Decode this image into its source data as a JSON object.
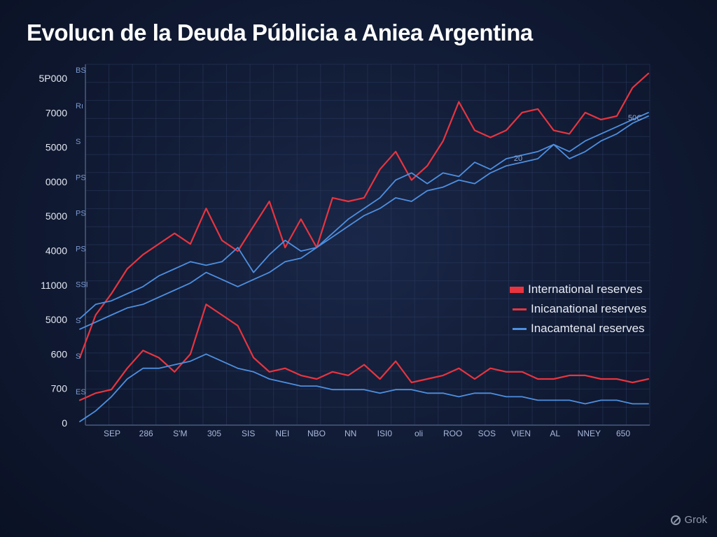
{
  "title": "Evolucn de la Deuda Públicia a Aniea Argentina",
  "watermark": "Grok",
  "colors": {
    "red": "#e8343f",
    "blue": "#4d8fe0",
    "grid": "#2b3a5e"
  },
  "chart_data": {
    "type": "line",
    "title": "Evolucn de la Deuda Públicia a Aniea Argentina",
    "xlabel": "",
    "ylabel": "",
    "grid": true,
    "legend_position": "right",
    "y_tick_labels": [
      "5P000",
      "7000",
      "5000",
      "0000",
      "5000",
      "4000",
      "11000",
      "5000",
      "600",
      "700",
      "0"
    ],
    "y_secondary_tick_labels": [
      "BS",
      "Rı",
      "S",
      "PS",
      "PS",
      "PS",
      "SSI",
      "S",
      "S",
      "ES"
    ],
    "x_tick_labels": [
      "SEP",
      "286",
      "S'M",
      "305",
      "SIS",
      "NEI",
      "NBO",
      "NN",
      "ISI0",
      "oli",
      "ROO",
      "SOS",
      "VIEN",
      "AL",
      "NNEY",
      "650"
    ],
    "annotations": [
      "20",
      "50C"
    ],
    "legend": [
      "International reserves",
      "Inicanational reserves",
      "Inacamtenal reserves"
    ],
    "ylim": [
      0,
      10
    ],
    "series": [
      {
        "name": "International reserves",
        "color": "#e8343f",
        "values": [
          1.9,
          3.1,
          3.7,
          4.4,
          4.8,
          5.1,
          5.4,
          5.1,
          6.1,
          5.2,
          4.9,
          5.6,
          6.3,
          5.0,
          5.8,
          5.0,
          6.4,
          6.3,
          6.4,
          7.2,
          7.7,
          6.9,
          7.3,
          8.0,
          9.1,
          8.3,
          8.1,
          8.3,
          8.8,
          8.9,
          8.3,
          8.2,
          8.8,
          8.6,
          8.7,
          9.5,
          9.9
        ]
      },
      {
        "name": "Inicanational reserves",
        "color": "#e8343f",
        "values": [
          0.7,
          0.9,
          1.0,
          1.6,
          2.1,
          1.9,
          1.5,
          2.0,
          3.4,
          3.1,
          2.8,
          1.9,
          1.5,
          1.6,
          1.4,
          1.3,
          1.5,
          1.4,
          1.7,
          1.3,
          1.8,
          1.2,
          1.3,
          1.4,
          1.6,
          1.3,
          1.6,
          1.5,
          1.5,
          1.3,
          1.3,
          1.4,
          1.4,
          1.3,
          1.3,
          1.2,
          1.3
        ]
      },
      {
        "name": "Inacamtenal reserves",
        "color": "#4d8fe0",
        "values": [
          3.0,
          3.4,
          3.5,
          3.7,
          3.9,
          4.2,
          4.4,
          4.6,
          4.5,
          4.6,
          5.0,
          4.3,
          4.8,
          5.2,
          4.9,
          5.0,
          5.4,
          5.8,
          6.1,
          6.4,
          6.9,
          7.1,
          6.8,
          7.1,
          7.0,
          7.4,
          7.2,
          7.5,
          7.6,
          7.7,
          7.9,
          7.7,
          8.0,
          8.2,
          8.4,
          8.6,
          8.8
        ]
      },
      {
        "name": "",
        "color": "#4d8fe0",
        "values": [
          2.7,
          2.9,
          3.1,
          3.3,
          3.4,
          3.6,
          3.8,
          4.0,
          4.3,
          4.1,
          3.9,
          4.1,
          4.3,
          4.6,
          4.7,
          5.0,
          5.3,
          5.6,
          5.9,
          6.1,
          6.4,
          6.3,
          6.6,
          6.7,
          6.9,
          6.8,
          7.1,
          7.3,
          7.4,
          7.5,
          7.9,
          7.5,
          7.7,
          8.0,
          8.2,
          8.5,
          8.7
        ]
      },
      {
        "name": "",
        "color": "#4d8fe0",
        "values": [
          0.1,
          0.4,
          0.8,
          1.3,
          1.6,
          1.6,
          1.7,
          1.8,
          2.0,
          1.8,
          1.6,
          1.5,
          1.3,
          1.2,
          1.1,
          1.1,
          1.0,
          1.0,
          1.0,
          0.9,
          1.0,
          1.0,
          0.9,
          0.9,
          0.8,
          0.9,
          0.9,
          0.8,
          0.8,
          0.7,
          0.7,
          0.7,
          0.6,
          0.7,
          0.7,
          0.6,
          0.6
        ]
      }
    ]
  }
}
